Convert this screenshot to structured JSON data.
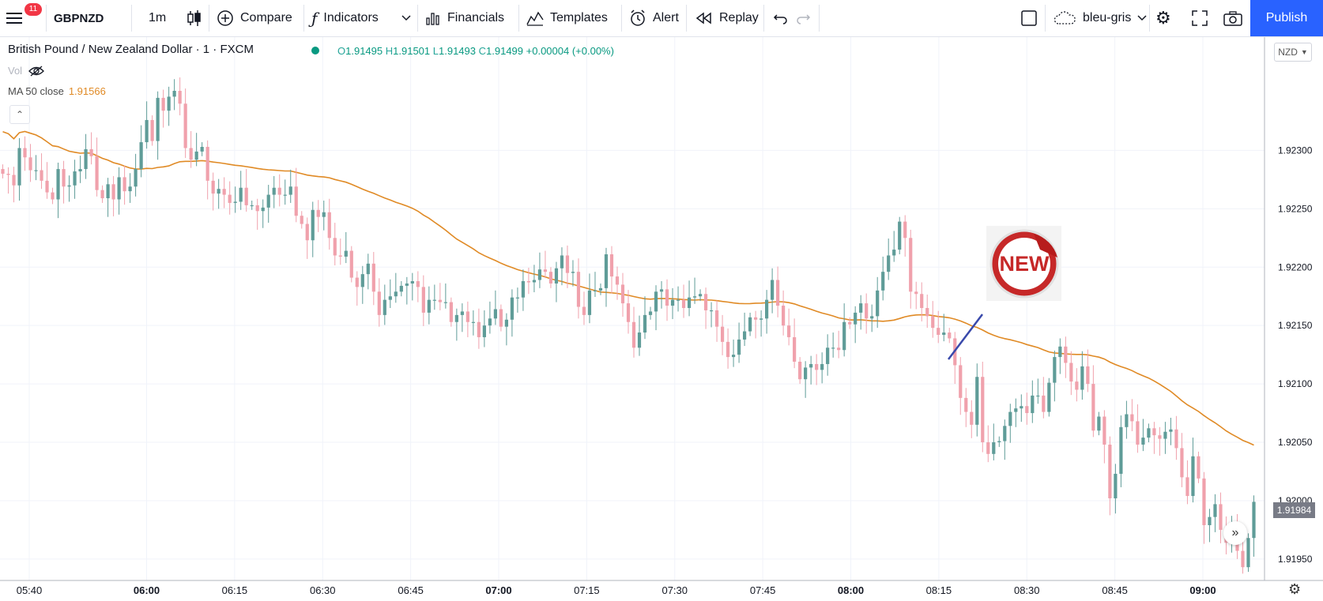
{
  "toolbar": {
    "menu_badge": "11",
    "symbol": "GBPNZD",
    "interval": "1m",
    "compare": "Compare",
    "indicators": "Indicators",
    "financials": "Financials",
    "templates": "Templates",
    "alert": "Alert",
    "replay": "Replay",
    "theme": "bleu-gris",
    "publish": "Publish"
  },
  "legend": {
    "title": "British Pound / New Zealand Dollar · 1 · FXCM",
    "o_label": "O",
    "o": "1.91495",
    "h_label": "H",
    "h": "1.91501",
    "l_label": "L",
    "l": "1.91493",
    "c_label": "C",
    "c": "1.91499",
    "change": "+0.00004 (+0.00%)",
    "vol_label": "Vol",
    "ma_label": "MA 50 close",
    "ma_value": "1.91566"
  },
  "currency": "NZD",
  "current_price": "1.91984",
  "sticker_text": "NEW",
  "colors": {
    "up": "#5f9c98",
    "down": "#f0a1ac",
    "ma": "#e08a25",
    "grid": "#f0f3fa",
    "drawing": "#3949ab",
    "accent": "#2962ff"
  },
  "chart_data": {
    "type": "candlestick",
    "x_ticks": [
      "05:40",
      "06:00",
      "06:15",
      "06:30",
      "06:45",
      "07:00",
      "07:15",
      "07:30",
      "07:45",
      "08:00",
      "08:15",
      "08:30",
      "08:45",
      "09:00"
    ],
    "y_ticks": [
      "1.92300",
      "1.92250",
      "1.92200",
      "1.92150",
      "1.92100",
      "1.92050",
      "1.92000",
      "1.91950"
    ],
    "ylim": [
      1.91933,
      1.92397
    ],
    "grid": true,
    "candles_close": [
      1.9228,
      1.92279,
      1.9227,
      1.92302,
      1.92294,
      1.92283,
      1.92283,
      1.92274,
      1.92264,
      1.92258,
      1.92284,
      1.92269,
      1.9227,
      1.92282,
      1.92284,
      1.92301,
      1.92295,
      1.92266,
      1.92259,
      1.92271,
      1.92258,
      1.92277,
      1.92265,
      1.92269,
      1.92284,
      1.92307,
      1.92326,
      1.92308,
      1.92345,
      1.92334,
      1.92346,
      1.92351,
      1.9234,
      1.92302,
      1.92292,
      1.92299,
      1.92303,
      1.92274,
      1.92263,
      1.92267,
      1.92262,
      1.92255,
      1.92256,
      1.92268,
      1.92253,
      1.92253,
      1.92248,
      1.92251,
      1.92262,
      1.92268,
      1.92262,
      1.92262,
      1.92269,
      1.92244,
      1.92237,
      1.92223,
      1.92249,
      1.92243,
      1.92247,
      1.92225,
      1.9221,
      1.92209,
      1.92214,
      1.92191,
      1.92183,
      1.92194,
      1.92203,
      1.92179,
      1.92159,
      1.92172,
      1.92175,
      1.92179,
      1.92184,
      1.92186,
      1.92188,
      1.92183,
      1.92161,
      1.92172,
      1.92172,
      1.9217,
      1.9217,
      1.92153,
      1.92159,
      1.92162,
      1.92153,
      1.92153,
      1.9214,
      1.9215,
      1.92156,
      1.92164,
      1.92149,
      1.92155,
      1.92174,
      1.92174,
      1.92188,
      1.92187,
      1.92189,
      1.92198,
      1.92196,
      1.92186,
      1.92199,
      1.9221,
      1.92195,
      1.92196,
      1.92166,
      1.92159,
      1.9218,
      1.9218,
      1.92182,
      1.92211,
      1.92192,
      1.92185,
      1.92169,
      1.92153,
      1.92131,
      1.92144,
      1.92159,
      1.92162,
      1.92179,
      1.92181,
      1.92167,
      1.92172,
      1.92172,
      1.92165,
      1.92174,
      1.92175,
      1.92177,
      1.92163,
      1.92163,
      1.92149,
      1.92136,
      1.92123,
      1.92125,
      1.92138,
      1.92145,
      1.92157,
      1.92155,
      1.92156,
      1.92172,
      1.92189,
      1.92167,
      1.9215,
      1.9214,
      1.92119,
      1.92104,
      1.92114,
      1.92117,
      1.92112,
      1.92117,
      1.92131,
      1.92131,
      1.92129,
      1.92153,
      1.92151,
      1.92161,
      1.92169,
      1.92156,
      1.92158,
      1.9218,
      1.92196,
      1.9221,
      1.92215,
      1.92239,
      1.92225,
      1.92179,
      1.92177,
      1.92165,
      1.92158,
      1.92148,
      1.92142,
      1.92144,
      1.92139,
      1.92116,
      1.92088,
      1.92076,
      1.92065,
      1.92106,
      1.9205,
      1.9204,
      1.9205,
      1.92051,
      1.92064,
      1.92076,
      1.92079,
      1.92081,
      1.92075,
      1.9209,
      1.9209,
      1.92076,
      1.92101,
      1.92123,
      1.92132,
      1.92118,
      1.92102,
      1.92095,
      1.92115,
      1.921,
      1.9206,
      1.92072,
      1.92048,
      1.92002,
      1.92023,
      1.92063,
      1.92074,
      1.92068,
      1.92048,
      1.92054,
      1.92062,
      1.92056,
      1.92053,
      1.92059,
      1.92061,
      1.92045,
      1.9202,
      1.92004,
      1.92038,
      1.92019,
      1.91979,
      1.91986,
      1.91997,
      1.91975,
      1.91964,
      1.91974,
      1.91957,
      1.91943,
      1.91968,
      1.91999
    ],
    "series": [
      {
        "name": "MA 50 close",
        "role": "moving-average"
      }
    ]
  }
}
